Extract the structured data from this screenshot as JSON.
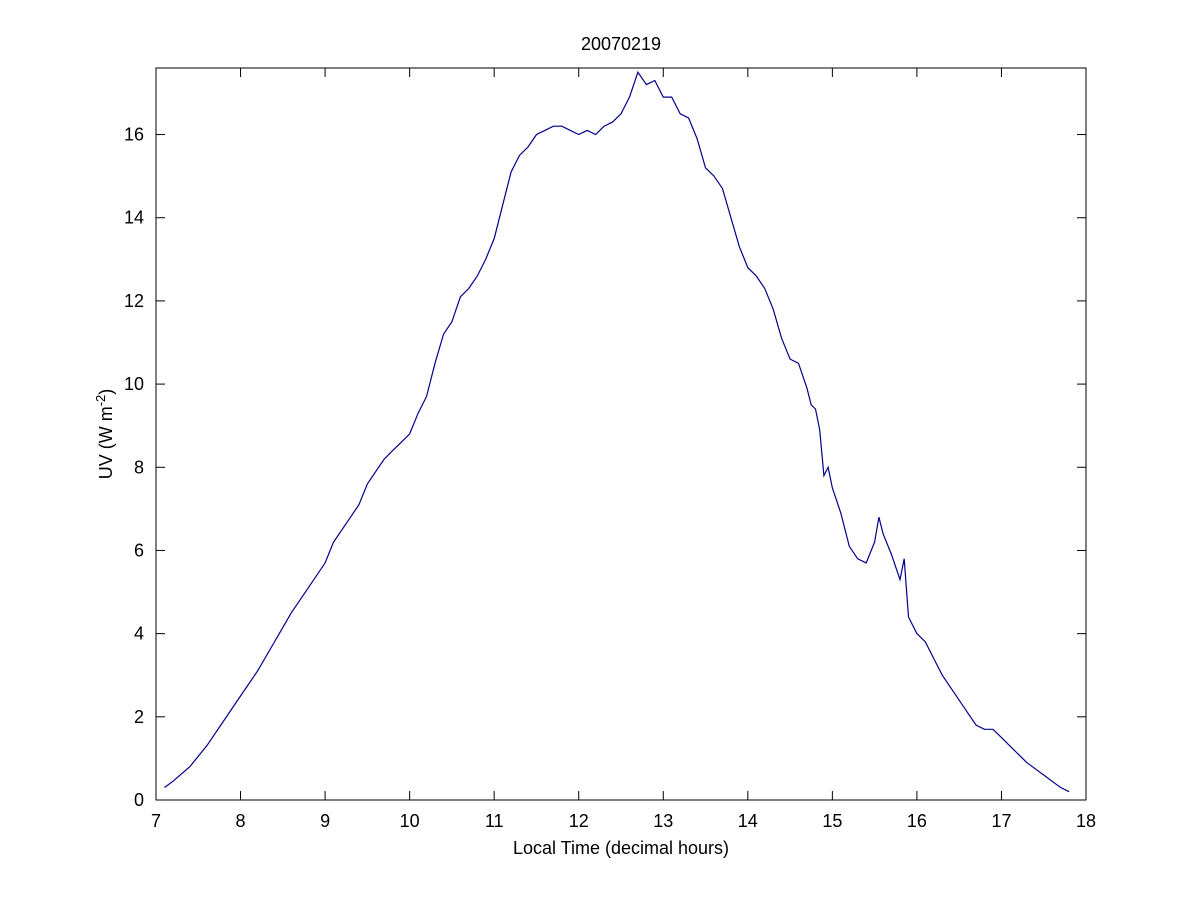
{
  "chart_data": {
    "type": "line",
    "title": "20070219",
    "xlabel": "Local Time (decimal hours)",
    "ylabel": {
      "main": "UV (W m",
      "superscript": "-2",
      "close": ")"
    },
    "xlim": [
      7,
      18
    ],
    "ylim": [
      0,
      17.6
    ],
    "xticks": [
      "7",
      "8",
      "9",
      "10",
      "11",
      "12",
      "13",
      "14",
      "15",
      "16",
      "17",
      "18"
    ],
    "yticks": [
      "0",
      "2",
      "4",
      "6",
      "8",
      "10",
      "12",
      "14",
      "16"
    ],
    "grid": false,
    "series": [
      {
        "color": "#00008b",
        "x": [
          7.1,
          7.2,
          7.4,
          7.6,
          7.8,
          8.0,
          8.2,
          8.4,
          8.6,
          8.8,
          9.0,
          9.1,
          9.2,
          9.3,
          9.4,
          9.5,
          9.6,
          9.7,
          9.8,
          9.9,
          10.0,
          10.1,
          10.2,
          10.3,
          10.4,
          10.5,
          10.6,
          10.7,
          10.8,
          10.9,
          11.0,
          11.1,
          11.2,
          11.3,
          11.4,
          11.5,
          11.6,
          11.7,
          11.8,
          11.9,
          12.0,
          12.1,
          12.2,
          12.3,
          12.4,
          12.5,
          12.6,
          12.7,
          12.8,
          12.9,
          13.0,
          13.1,
          13.2,
          13.3,
          13.4,
          13.5,
          13.6,
          13.7,
          13.8,
          13.9,
          14.0,
          14.1,
          14.2,
          14.3,
          14.4,
          14.5,
          14.6,
          14.7,
          14.75,
          14.8,
          14.85,
          14.9,
          14.95,
          15.0,
          15.1,
          15.2,
          15.3,
          15.4,
          15.5,
          15.55,
          15.6,
          15.7,
          15.8,
          15.85,
          15.9,
          16.0,
          16.1,
          16.2,
          16.3,
          16.4,
          16.5,
          16.6,
          16.7,
          16.8,
          16.9,
          17.0,
          17.1,
          17.2,
          17.3,
          17.4,
          17.5,
          17.6,
          17.7,
          17.8
        ],
        "y": [
          0.3,
          0.45,
          0.8,
          1.3,
          1.9,
          2.5,
          3.1,
          3.8,
          4.5,
          5.1,
          5.7,
          6.2,
          6.5,
          6.8,
          7.1,
          7.6,
          7.9,
          8.2,
          8.4,
          8.6,
          8.8,
          9.3,
          9.7,
          10.5,
          11.2,
          11.5,
          12.1,
          12.3,
          12.6,
          13.0,
          13.5,
          14.3,
          15.1,
          15.5,
          15.7,
          16.0,
          16.1,
          16.2,
          16.2,
          16.1,
          16.0,
          16.1,
          16.0,
          16.2,
          16.3,
          16.5,
          16.9,
          17.5,
          17.2,
          17.3,
          16.9,
          16.9,
          16.5,
          16.4,
          15.9,
          15.2,
          15.0,
          14.7,
          14.0,
          13.3,
          12.8,
          12.6,
          12.3,
          11.8,
          11.1,
          10.6,
          10.5,
          9.9,
          9.5,
          9.4,
          8.9,
          7.8,
          8.0,
          7.5,
          6.9,
          6.1,
          5.8,
          5.7,
          6.2,
          6.8,
          6.4,
          5.9,
          5.3,
          5.8,
          4.4,
          4.0,
          3.8,
          3.4,
          3.0,
          2.7,
          2.4,
          2.1,
          1.8,
          1.7,
          1.7,
          1.5,
          1.3,
          1.1,
          0.9,
          0.75,
          0.6,
          0.45,
          0.3,
          0.2
        ]
      }
    ]
  }
}
